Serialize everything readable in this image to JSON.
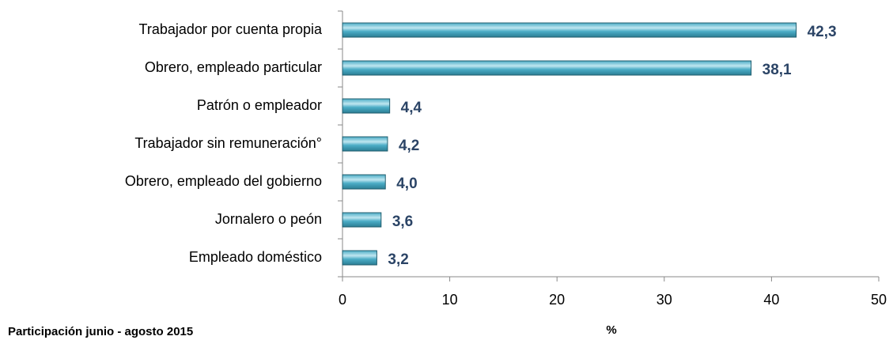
{
  "chart_data": {
    "type": "bar",
    "orientation": "horizontal",
    "categories": [
      "Trabajador por cuenta propia",
      "Obrero, empleado particular",
      "Patrón o empleador",
      "Trabajador sin remuneración°",
      "Obrero, empleado del gobierno",
      "Jornalero o peón",
      "Empleado doméstico"
    ],
    "values": [
      42.3,
      38.1,
      4.4,
      4.2,
      4.0,
      3.6,
      3.2
    ],
    "value_labels": [
      "42,3",
      "38,1",
      "4,4",
      "4,2",
      "4,0",
      "3,6",
      "3,2"
    ],
    "color": "#4bacc6",
    "xlim": [
      0,
      50
    ],
    "xticks": [
      0,
      10,
      20,
      30,
      40,
      50
    ],
    "xlabel": "%",
    "annotation": "Participación junio - agosto 2015"
  }
}
